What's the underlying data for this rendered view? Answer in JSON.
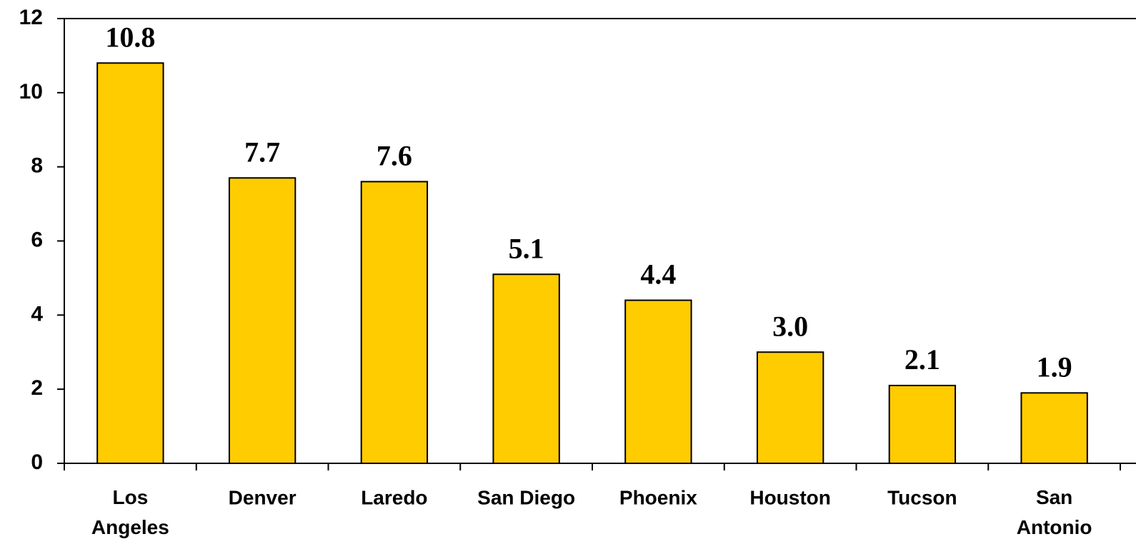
{
  "chart_data": {
    "type": "bar",
    "categories": [
      "Los\nAngeles",
      "Denver",
      "Laredo",
      "San Diego",
      "Phoenix",
      "Houston",
      "Tucson",
      "San\nAntonio"
    ],
    "values": [
      10.8,
      7.7,
      7.6,
      5.1,
      4.4,
      3.0,
      2.1,
      1.9
    ],
    "value_labels": [
      "10.8",
      "7.7",
      "7.6",
      "5.1",
      "4.4",
      "3.0",
      "2.1",
      "1.9"
    ],
    "color": "#ffcc00",
    "ylim": [
      0,
      12
    ],
    "yticks": [
      0,
      2,
      4,
      6,
      8,
      10,
      12
    ],
    "grid": false
  }
}
